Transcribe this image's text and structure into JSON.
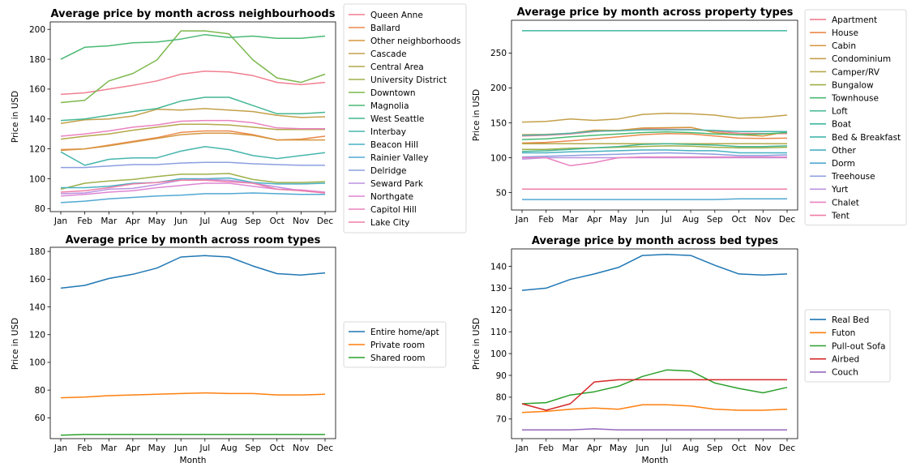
{
  "chart_data": [
    {
      "type": "line",
      "title": "Average price by month across neighbourhoods",
      "xlabel": "",
      "ylabel": "Price in USD",
      "categories": [
        "Jan",
        "Feb",
        "Mar",
        "Apr",
        "May",
        "Jun",
        "Jul",
        "Aug",
        "Sep",
        "Oct",
        "Nov",
        "Dec"
      ],
      "ylim": [
        78,
        205
      ],
      "yticks": [
        80,
        100,
        120,
        140,
        160,
        180,
        200
      ],
      "legend": "right-outside",
      "series": [
        {
          "name": "Queen Anne",
          "color": "#f07f91",
          "values": [
            156.5,
            157.5,
            160,
            162.5,
            165.5,
            170,
            172,
            171.5,
            169,
            164.5,
            163,
            164.5
          ]
        },
        {
          "name": "Ballard",
          "color": "#ea8a4c",
          "values": [
            119.5,
            120,
            122.5,
            125,
            127.5,
            131,
            132,
            132,
            129.5,
            126,
            126.5,
            128.5
          ]
        },
        {
          "name": "Other neighborhoods",
          "color": "#d6963e",
          "values": [
            119,
            120,
            122,
            124.5,
            127,
            129.5,
            130.5,
            130.5,
            129,
            126,
            126,
            126
          ]
        },
        {
          "name": "Cascade",
          "color": "#c4a04a",
          "values": [
            137,
            139.5,
            140,
            142,
            146.5,
            146,
            147,
            146,
            145,
            142.5,
            141,
            141.5
          ]
        },
        {
          "name": "Central Area",
          "color": "#b4a84a",
          "values": [
            126.5,
            128.5,
            130,
            132.5,
            134.5,
            136.5,
            136.5,
            136,
            134.5,
            133,
            133,
            133
          ]
        },
        {
          "name": "University District",
          "color": "#9eb04a",
          "values": [
            93,
            97,
            98.5,
            99.5,
            101.5,
            103,
            103,
            103.5,
            99.5,
            97.5,
            97.5,
            98
          ]
        },
        {
          "name": "Downtown",
          "color": "#7cb84e",
          "values": [
            151,
            152.5,
            165.5,
            170.5,
            179.5,
            199,
            199,
            197,
            179.5,
            167.5,
            164.5,
            170
          ]
        },
        {
          "name": "Magnolia",
          "color": "#49b972",
          "values": [
            180,
            188,
            189,
            191,
            191.5,
            193.5,
            196.5,
            194.5,
            195.5,
            194,
            194,
            195.5
          ]
        },
        {
          "name": "West Seattle",
          "color": "#44b794",
          "values": [
            139,
            140,
            142.5,
            145,
            147,
            152,
            154.5,
            154.5,
            149,
            143.5,
            143.5,
            144.5
          ]
        },
        {
          "name": "Interbay",
          "color": "#46b6ad",
          "values": [
            118,
            109,
            113,
            114,
            114,
            118.5,
            121.5,
            119.5,
            115.5,
            113.5,
            115.5,
            117.5
          ]
        },
        {
          "name": "Beacon Hill",
          "color": "#48b1c2",
          "values": [
            94,
            94,
            95,
            97,
            97.5,
            100,
            100,
            100.5,
            97.5,
            96.5,
            96.5,
            97
          ]
        },
        {
          "name": "Rainier Valley",
          "color": "#52a8d4",
          "values": [
            84,
            85,
            86.5,
            87.5,
            88.5,
            89,
            90,
            90,
            90.5,
            90,
            89.5,
            89.5
          ]
        },
        {
          "name": "Delridge",
          "color": "#8c9fe0",
          "values": [
            107.5,
            107.5,
            108.5,
            109.5,
            109.5,
            110.5,
            111,
            111,
            110,
            109.5,
            109,
            109
          ]
        },
        {
          "name": "Seward Park",
          "color": "#bb92e0",
          "values": [
            90,
            90.5,
            93,
            93.5,
            96,
            99,
            99.5,
            99,
            97,
            94.5,
            92,
            90.5
          ]
        },
        {
          "name": "Northgate",
          "color": "#dd86d4",
          "values": [
            88.5,
            89.5,
            91,
            92,
            94,
            95.5,
            97,
            97,
            95,
            93,
            92.5,
            91
          ]
        },
        {
          "name": "Capitol Hill",
          "color": "#ea82c0",
          "values": [
            128.5,
            130,
            132,
            134.5,
            136,
            138.5,
            139,
            139,
            137.5,
            134,
            133.5,
            133.5
          ]
        },
        {
          "name": "Lake City",
          "color": "#ef7ea8",
          "values": [
            91,
            92,
            94,
            96.5,
            97.5,
            99,
            99,
            98,
            97,
            93,
            92,
            90.5
          ]
        }
      ]
    },
    {
      "type": "line",
      "title": "Average price by month across property types",
      "xlabel": "",
      "ylabel": "Price in USD",
      "categories": [
        "Jan",
        "Feb",
        "Mar",
        "Apr",
        "May",
        "Jun",
        "Jul",
        "Aug",
        "Sep",
        "Oct",
        "Nov",
        "Dec"
      ],
      "ylim": [
        25,
        297
      ],
      "yticks": [
        50,
        100,
        150,
        200,
        250
      ],
      "legend": "right-outside",
      "series": [
        {
          "name": "Apartment",
          "color": "#f07f91",
          "values": [
            131,
            132,
            134,
            137.5,
            139,
            141,
            141,
            140.5,
            138,
            135,
            134.5,
            134.5
          ]
        },
        {
          "name": "House",
          "color": "#ea8a4c",
          "values": [
            121,
            122,
            124,
            127,
            130,
            133,
            134.5,
            134,
            131,
            128,
            127.5,
            128
          ]
        },
        {
          "name": "Cabin",
          "color": "#d6963e",
          "values": [
            133,
            133.5,
            135,
            139.5,
            139,
            142.5,
            143,
            143.5,
            136,
            133,
            131,
            137
          ]
        },
        {
          "name": "Condominium",
          "color": "#c4a04a",
          "values": [
            151,
            152,
            155.5,
            153.5,
            155.5,
            162,
            163.5,
            163,
            161,
            156.5,
            158,
            161
          ]
        },
        {
          "name": "Camper/RV",
          "color": "#b4a84a",
          "values": [
            120,
            120,
            120,
            120,
            120,
            120,
            120,
            120,
            120,
            120,
            120,
            120
          ]
        },
        {
          "name": "Bungalow",
          "color": "#9eb04a",
          "values": [
            112,
            112,
            113.5,
            114,
            115,
            116,
            117,
            116.5,
            115,
            114,
            114,
            115
          ]
        },
        {
          "name": "Townhouse",
          "color": "#49b972",
          "values": [
            126,
            127,
            130,
            132,
            134,
            136,
            137,
            136,
            134,
            133,
            134,
            136
          ]
        },
        {
          "name": "Loft",
          "color": "#44b794",
          "values": [
            109,
            110,
            112,
            114,
            116,
            119,
            120,
            119,
            118,
            116,
            116,
            117
          ]
        },
        {
          "name": "Boat",
          "color": "#3db8a0",
          "values": [
            282,
            282,
            282,
            282,
            282,
            282,
            282,
            282,
            282,
            282,
            282,
            282
          ]
        },
        {
          "name": "Bed & Breakfast",
          "color": "#46b6ad",
          "values": [
            132,
            133,
            135,
            138,
            138.5,
            140,
            140,
            140,
            139,
            137.5,
            137.5,
            137.5
          ]
        },
        {
          "name": "Other",
          "color": "#48b1c2",
          "values": [
            107,
            107,
            108.5,
            109,
            110,
            111,
            111,
            110,
            110,
            107,
            107,
            107
          ]
        },
        {
          "name": "Dorm",
          "color": "#52a8d4",
          "values": [
            40,
            40,
            40,
            40,
            40,
            40,
            40,
            40,
            40,
            41,
            41,
            41
          ]
        },
        {
          "name": "Treehouse",
          "color": "#8c9fe0",
          "values": [
            101,
            102,
            103,
            104,
            105,
            106,
            107,
            106,
            105,
            103,
            103,
            104
          ]
        },
        {
          "name": "Yurt",
          "color": "#bb92e0",
          "values": [
            98,
            100,
            100,
            100,
            100,
            100,
            100,
            100,
            100,
            100,
            100,
            100
          ]
        },
        {
          "name": "Chalet",
          "color": "#ea82c0",
          "values": [
            100,
            100,
            88.5,
            93,
            100,
            101,
            101,
            101,
            101,
            101,
            101,
            101
          ]
        },
        {
          "name": "Tent",
          "color": "#ef7ea8",
          "values": [
            55,
            55,
            55,
            55,
            55,
            55,
            55,
            55,
            55,
            55,
            55,
            55
          ]
        }
      ]
    },
    {
      "type": "line",
      "title": "Average price by month across room types",
      "xlabel": "Month",
      "ylabel": "Price in USD",
      "categories": [
        "Jan",
        "Feb",
        "Mar",
        "Apr",
        "May",
        "Jun",
        "Jul",
        "Aug",
        "Sep",
        "Oct",
        "Nov",
        "Dec"
      ],
      "ylim": [
        45,
        183
      ],
      "yticks": [
        60,
        80,
        100,
        120,
        140,
        160,
        180
      ],
      "legend": "right-outside",
      "series": [
        {
          "name": "Entire home/apt",
          "color": "#1f77b4",
          "values": [
            153.5,
            155.5,
            160.5,
            163.5,
            168,
            176,
            177,
            176,
            169.5,
            164,
            163,
            164.5
          ]
        },
        {
          "name": "Private room",
          "color": "#ff7f0e",
          "values": [
            74.5,
            75,
            76,
            76.5,
            77,
            77.5,
            78,
            77.5,
            77.5,
            76.5,
            76.5,
            77
          ]
        },
        {
          "name": "Shared room",
          "color": "#2ca02c",
          "values": [
            47.5,
            48,
            48,
            48,
            48,
            48,
            48,
            48,
            48,
            48,
            48,
            48
          ]
        }
      ]
    },
    {
      "type": "line",
      "title": "Average price by month across bed types",
      "xlabel": "Month",
      "ylabel": "Price in USD",
      "categories": [
        "Jan",
        "Feb",
        "Mar",
        "Apr",
        "May",
        "Jun",
        "Jul",
        "Aug",
        "Sep",
        "Oct",
        "Nov",
        "Dec"
      ],
      "ylim": [
        61,
        148
      ],
      "yticks": [
        70,
        80,
        90,
        100,
        110,
        120,
        130,
        140
      ],
      "legend": "right-outside",
      "series": [
        {
          "name": "Real Bed",
          "color": "#1f77b4",
          "values": [
            129,
            130,
            134,
            136.5,
            139.5,
            145,
            145.5,
            145,
            140.5,
            136.5,
            136,
            136.5
          ]
        },
        {
          "name": "Futon",
          "color": "#ff7f0e",
          "values": [
            73,
            73.5,
            74.5,
            75,
            74.5,
            76.5,
            76.5,
            76,
            74.5,
            74,
            74,
            74.5
          ]
        },
        {
          "name": "Pull-out Sofa",
          "color": "#2ca02c",
          "values": [
            77,
            77.5,
            81,
            82.5,
            85,
            89.5,
            92.5,
            92,
            86.5,
            84,
            82,
            84.5
          ]
        },
        {
          "name": "Airbed",
          "color": "#d62728",
          "values": [
            77,
            74,
            77,
            87,
            88,
            88,
            88,
            88,
            88,
            88,
            88,
            88
          ]
        },
        {
          "name": "Couch",
          "color": "#9467bd",
          "values": [
            65,
            65,
            65,
            65.5,
            65,
            65,
            65,
            65,
            65,
            65,
            65,
            65
          ]
        }
      ]
    }
  ]
}
